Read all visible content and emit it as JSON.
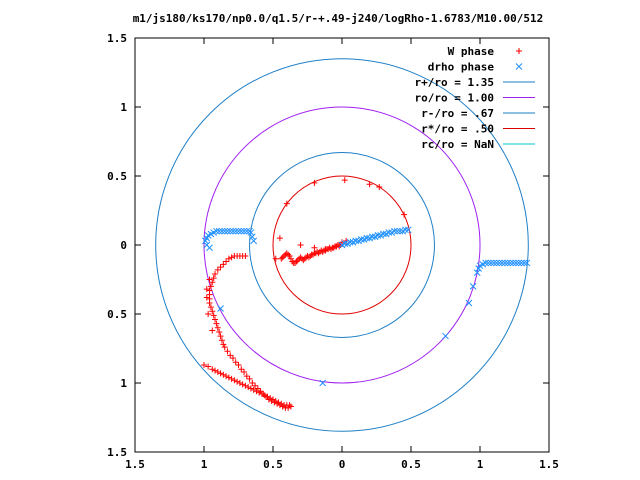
{
  "chart_data": {
    "type": "scatter",
    "title": "m1/js180/ks170/np0.0/q1.5/r-+.49-j240/logRho-1.6783/M10.00/512",
    "xlim": [
      -1.5,
      1.5
    ],
    "ylim": [
      -1.5,
      1.5
    ],
    "x_tick_labels": [
      "1.5",
      "1",
      "0.5",
      "0",
      "0.5",
      "1",
      "1.5"
    ],
    "x_tick_values": [
      -1.5,
      -1,
      -0.5,
      0,
      0.5,
      1,
      1.5
    ],
    "y_tick_labels": [
      "1.5",
      "1",
      "0.5",
      "0",
      "0.5",
      "1",
      "1.5"
    ],
    "y_tick_values": [
      1.5,
      1,
      0.5,
      0,
      -0.5,
      -1,
      -1.5
    ],
    "grid": false,
    "legend_position": "top-right",
    "circles": [
      {
        "name": "r+/ro = 1.35",
        "radius": 1.35,
        "color": "#1e7fc6"
      },
      {
        "name": "ro/ro = 1.00",
        "radius": 1.0,
        "color": "#a020f0"
      },
      {
        "name": "r-/ro = .67",
        "radius": 0.67,
        "color": "#1e7fc6"
      },
      {
        "name": "r*/ro = .50",
        "radius": 0.5,
        "color": "#e00000"
      },
      {
        "name": "rc/ro = NaN",
        "radius": null,
        "color": "#00c8c8"
      }
    ],
    "series": [
      {
        "name": "W phase",
        "marker": "+",
        "color": "#ff0000",
        "points": [
          [
            -0.2,
            0.45
          ],
          [
            0.02,
            0.47
          ],
          [
            0.2,
            0.44
          ],
          [
            0.27,
            0.42
          ],
          [
            -0.4,
            0.3
          ],
          [
            0.45,
            0.22
          ],
          [
            -0.45,
            0.05
          ],
          [
            -0.48,
            -0.1
          ],
          [
            -0.3,
            0.0
          ],
          [
            -0.2,
            -0.02
          ],
          [
            -0.12,
            -0.03
          ],
          [
            -0.05,
            -0.01
          ],
          [
            -0.02,
            0.0
          ],
          [
            0.0,
            0.02
          ],
          [
            0.03,
            0.03
          ],
          [
            -0.44,
            -0.1
          ],
          [
            -0.43,
            -0.09
          ],
          [
            -0.42,
            -0.08
          ],
          [
            -0.41,
            -0.07
          ],
          [
            -0.4,
            -0.06
          ],
          [
            -0.39,
            -0.07
          ],
          [
            -0.38,
            -0.08
          ],
          [
            -0.37,
            -0.1
          ],
          [
            -0.36,
            -0.12
          ],
          [
            -0.35,
            -0.13
          ],
          [
            -0.34,
            -0.13
          ],
          [
            -0.33,
            -0.12
          ],
          [
            -0.32,
            -0.11
          ],
          [
            -0.31,
            -0.1
          ],
          [
            -0.3,
            -0.09
          ],
          [
            -0.29,
            -0.1
          ],
          [
            -0.28,
            -0.11
          ],
          [
            -0.27,
            -0.1
          ],
          [
            -0.26,
            -0.09
          ],
          [
            -0.25,
            -0.08
          ],
          [
            -0.24,
            -0.09
          ],
          [
            -0.23,
            -0.08
          ],
          [
            -0.22,
            -0.07
          ],
          [
            -0.21,
            -0.07
          ],
          [
            -0.2,
            -0.06
          ],
          [
            -0.19,
            -0.06
          ],
          [
            -0.18,
            -0.05
          ],
          [
            -0.17,
            -0.06
          ],
          [
            -0.16,
            -0.05
          ],
          [
            -0.15,
            -0.04
          ],
          [
            -0.14,
            -0.05
          ],
          [
            -0.13,
            -0.04
          ],
          [
            -0.12,
            -0.04
          ],
          [
            -0.11,
            -0.03
          ],
          [
            -0.1,
            -0.03
          ],
          [
            -0.09,
            -0.02
          ],
          [
            -0.08,
            -0.03
          ],
          [
            -0.07,
            -0.02
          ],
          [
            -0.06,
            -0.02
          ],
          [
            -0.05,
            -0.01
          ],
          [
            -0.04,
            -0.01
          ],
          [
            -0.03,
            0.0
          ],
          [
            -0.02,
            -0.01
          ],
          [
            -0.01,
            0.0
          ],
          [
            -0.7,
            -0.08
          ],
          [
            -0.72,
            -0.08
          ],
          [
            -0.74,
            -0.08
          ],
          [
            -0.76,
            -0.08
          ],
          [
            -0.78,
            -0.08
          ],
          [
            -0.8,
            -0.09
          ],
          [
            -0.82,
            -0.1
          ],
          [
            -0.84,
            -0.12
          ],
          [
            -0.86,
            -0.14
          ],
          [
            -0.88,
            -0.16
          ],
          [
            -0.9,
            -0.18
          ],
          [
            -0.92,
            -0.21
          ],
          [
            -0.93,
            -0.24
          ],
          [
            -0.94,
            -0.27
          ],
          [
            -0.95,
            -0.3
          ],
          [
            -0.96,
            -0.33
          ],
          [
            -0.96,
            -0.36
          ],
          [
            -0.96,
            -0.39
          ],
          [
            -0.96,
            -0.42
          ],
          [
            -0.95,
            -0.45
          ],
          [
            -0.94,
            -0.48
          ],
          [
            -0.93,
            -0.51
          ],
          [
            -0.92,
            -0.54
          ],
          [
            -0.91,
            -0.57
          ],
          [
            -0.9,
            -0.6
          ],
          [
            -0.89,
            -0.63
          ],
          [
            -0.88,
            -0.66
          ],
          [
            -0.87,
            -0.69
          ],
          [
            -0.86,
            -0.72
          ],
          [
            -0.85,
            -0.74
          ],
          [
            -0.83,
            -0.77
          ],
          [
            -0.81,
            -0.8
          ],
          [
            -0.79,
            -0.82
          ],
          [
            -0.77,
            -0.85
          ],
          [
            -0.75,
            -0.87
          ],
          [
            -0.73,
            -0.9
          ],
          [
            -0.71,
            -0.92
          ],
          [
            -0.69,
            -0.95
          ],
          [
            -0.67,
            -0.97
          ],
          [
            -0.65,
            -1.0
          ],
          [
            -0.63,
            -1.02
          ],
          [
            -0.61,
            -1.04
          ],
          [
            -0.59,
            -1.06
          ],
          [
            -0.57,
            -1.08
          ],
          [
            -0.55,
            -1.1
          ],
          [
            -0.53,
            -1.12
          ],
          [
            -0.51,
            -1.13
          ],
          [
            -0.49,
            -1.14
          ],
          [
            -0.47,
            -1.15
          ],
          [
            -0.45,
            -1.16
          ],
          [
            -0.43,
            -1.17
          ],
          [
            -0.41,
            -1.18
          ],
          [
            -0.39,
            -1.18
          ],
          [
            -0.37,
            -1.17
          ],
          [
            -0.38,
            -1.16
          ],
          [
            -0.4,
            -1.16
          ],
          [
            -0.42,
            -1.16
          ],
          [
            -0.44,
            -1.15
          ],
          [
            -0.46,
            -1.14
          ],
          [
            -0.48,
            -1.13
          ],
          [
            -0.5,
            -1.12
          ],
          [
            -0.52,
            -1.11
          ],
          [
            -0.54,
            -1.1
          ],
          [
            -0.56,
            -1.09
          ],
          [
            -0.58,
            -1.08
          ],
          [
            -0.6,
            -1.07
          ],
          [
            -0.62,
            -1.06
          ],
          [
            -0.64,
            -1.05
          ],
          [
            -0.66,
            -1.04
          ],
          [
            -0.68,
            -1.03
          ],
          [
            -0.7,
            -1.02
          ],
          [
            -0.72,
            -1.01
          ],
          [
            -0.74,
            -1.0
          ],
          [
            -0.76,
            -0.99
          ],
          [
            -0.78,
            -0.98
          ],
          [
            -0.8,
            -0.97
          ],
          [
            -0.82,
            -0.96
          ],
          [
            -0.84,
            -0.95
          ],
          [
            -0.86,
            -0.94
          ],
          [
            -0.88,
            -0.93
          ],
          [
            -0.9,
            -0.92
          ],
          [
            -0.92,
            -0.91
          ],
          [
            -0.94,
            -0.9
          ],
          [
            -0.97,
            -0.88
          ],
          [
            -1.0,
            -0.87
          ],
          [
            -0.94,
            -0.62
          ],
          [
            -0.97,
            -0.5
          ],
          [
            -0.98,
            -0.38
          ],
          [
            -0.98,
            -0.32
          ],
          [
            -0.96,
            -0.25
          ]
        ]
      },
      {
        "name": "drho phase",
        "marker": "x",
        "color": "#1e90ff",
        "points": [
          [
            0.0,
            0.0
          ],
          [
            0.02,
            0.01
          ],
          [
            0.04,
            0.01
          ],
          [
            0.06,
            0.02
          ],
          [
            0.08,
            0.02
          ],
          [
            0.1,
            0.03
          ],
          [
            0.12,
            0.03
          ],
          [
            0.14,
            0.04
          ],
          [
            0.16,
            0.04
          ],
          [
            0.18,
            0.05
          ],
          [
            0.2,
            0.05
          ],
          [
            0.22,
            0.06
          ],
          [
            0.24,
            0.06
          ],
          [
            0.26,
            0.07
          ],
          [
            0.28,
            0.07
          ],
          [
            0.3,
            0.08
          ],
          [
            0.32,
            0.08
          ],
          [
            0.34,
            0.09
          ],
          [
            0.36,
            0.09
          ],
          [
            0.38,
            0.1
          ],
          [
            0.4,
            0.1
          ],
          [
            0.42,
            0.1
          ],
          [
            0.44,
            0.1
          ],
          [
            0.46,
            0.11
          ],
          [
            0.48,
            0.11
          ],
          [
            -0.99,
            0.03
          ],
          [
            -0.98,
            0.05
          ],
          [
            -0.97,
            0.07
          ],
          [
            -0.95,
            0.08
          ],
          [
            -0.93,
            0.09
          ],
          [
            -0.91,
            0.1
          ],
          [
            -0.89,
            0.1
          ],
          [
            -0.87,
            0.1
          ],
          [
            -0.85,
            0.1
          ],
          [
            -0.83,
            0.1
          ],
          [
            -0.81,
            0.1
          ],
          [
            -0.79,
            0.1
          ],
          [
            -0.77,
            0.1
          ],
          [
            -0.75,
            0.1
          ],
          [
            -0.73,
            0.1
          ],
          [
            -0.71,
            0.1
          ],
          [
            -0.69,
            0.1
          ],
          [
            -0.67,
            0.1
          ],
          [
            -0.66,
            0.09
          ],
          [
            -0.65,
            0.06
          ],
          [
            -0.64,
            0.03
          ],
          [
            -0.98,
            0.0
          ],
          [
            -0.96,
            -0.02
          ],
          [
            0.98,
            -0.2
          ],
          [
            0.99,
            -0.17
          ],
          [
            1.0,
            -0.15
          ],
          [
            1.02,
            -0.14
          ],
          [
            1.04,
            -0.13
          ],
          [
            1.06,
            -0.13
          ],
          [
            1.08,
            -0.13
          ],
          [
            1.1,
            -0.13
          ],
          [
            1.12,
            -0.13
          ],
          [
            1.14,
            -0.13
          ],
          [
            1.16,
            -0.13
          ],
          [
            1.18,
            -0.13
          ],
          [
            1.2,
            -0.13
          ],
          [
            1.22,
            -0.13
          ],
          [
            1.24,
            -0.13
          ],
          [
            1.26,
            -0.13
          ],
          [
            1.28,
            -0.13
          ],
          [
            1.3,
            -0.13
          ],
          [
            1.32,
            -0.13
          ],
          [
            1.34,
            -0.13
          ],
          [
            0.95,
            -0.3
          ],
          [
            0.92,
            -0.42
          ],
          [
            -0.88,
            -0.46
          ],
          [
            0.75,
            -0.66
          ],
          [
            -0.14,
            -1.0
          ]
        ]
      }
    ]
  }
}
